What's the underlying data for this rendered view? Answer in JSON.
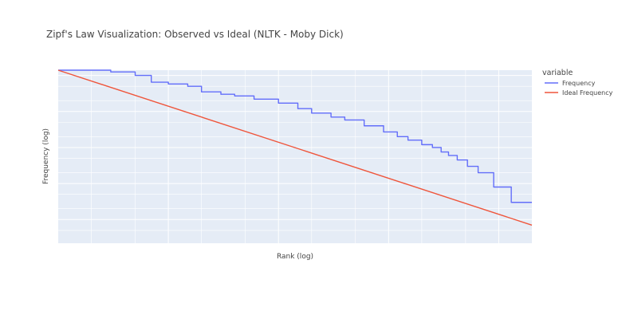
{
  "chart_data": {
    "type": "line",
    "title": "Zipf's Law Visualization: Observed vs Ideal (NLTK - Moby Dick)",
    "xlabel": "Rank (log)",
    "ylabel": "Frequency (log)",
    "x_scale": "log",
    "y_scale": "log",
    "tick_labels_shown": false,
    "grid": true,
    "xlim": [
      1,
      20000
    ],
    "ylim": [
      0.22,
      14000
    ],
    "legend": {
      "title": "variable",
      "placement": "top-right"
    },
    "series": [
      {
        "name": "Frequency",
        "color": "#636efa",
        "step": true,
        "points": [
          [
            1,
            14000
          ],
          [
            3,
            12500
          ],
          [
            5,
            10000
          ],
          [
            7,
            6500
          ],
          [
            10,
            5800
          ],
          [
            15,
            5000
          ],
          [
            20,
            3500
          ],
          [
            30,
            3000
          ],
          [
            40,
            2700
          ],
          [
            60,
            2200
          ],
          [
            100,
            1700
          ],
          [
            150,
            1200
          ],
          [
            200,
            900
          ],
          [
            300,
            700
          ],
          [
            400,
            580
          ],
          [
            600,
            400
          ],
          [
            900,
            270
          ],
          [
            1200,
            200
          ],
          [
            1500,
            160
          ],
          [
            2000,
            120
          ],
          [
            2500,
            100
          ],
          [
            3000,
            75
          ],
          [
            3500,
            60
          ],
          [
            4200,
            45
          ],
          [
            5200,
            30
          ],
          [
            6500,
            20
          ],
          [
            9000,
            8
          ],
          [
            13000,
            3
          ],
          [
            20000,
            3
          ]
        ]
      },
      {
        "name": "Ideal Frequency",
        "color": "#ef553b",
        "step": false,
        "points": [
          [
            1,
            14000
          ],
          [
            20000,
            0.7
          ]
        ]
      }
    ]
  }
}
